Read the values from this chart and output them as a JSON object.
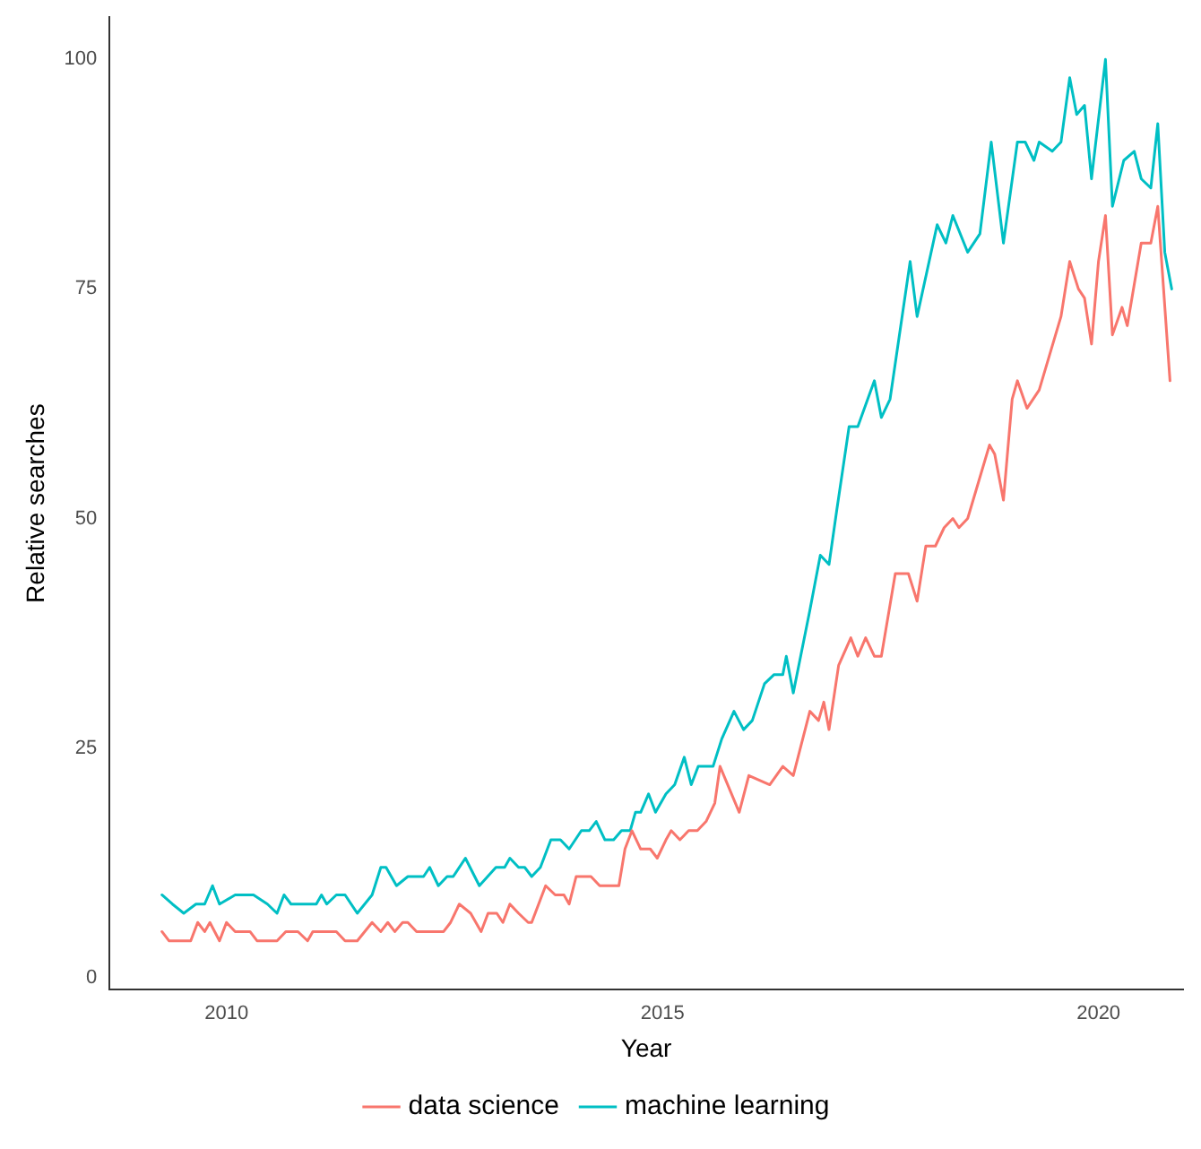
{
  "chart_data": {
    "type": "line",
    "xlabel": "Year",
    "ylabel": "Relative searches",
    "xlim": [
      2008.66,
      2020.97
    ],
    "xticks": [
      2010,
      2015,
      2020
    ],
    "ylim": [
      -1.3,
      104.6
    ],
    "yticks": [
      0,
      25,
      50,
      75,
      100
    ],
    "grid": false,
    "legend": "bottom",
    "marker": "none",
    "line_style": "solid",
    "series": [
      {
        "name": "data science",
        "color": "#f8766d",
        "x": [
          2009.26,
          2009.34,
          2009.59,
          2009.67,
          2009.75,
          2009.81,
          2009.92,
          2010.0,
          2010.1,
          2010.27,
          2010.35,
          2010.58,
          2010.68,
          2010.82,
          2010.93,
          2010.99,
          2011.26,
          2011.36,
          2011.5,
          2011.67,
          2011.77,
          2011.85,
          2011.93,
          2012.02,
          2012.08,
          2012.18,
          2012.49,
          2012.57,
          2012.67,
          2012.8,
          2012.92,
          2013.0,
          2013.1,
          2013.17,
          2013.25,
          2013.35,
          2013.46,
          2013.5,
          2013.66,
          2013.77,
          2013.87,
          2013.93,
          2014.01,
          2014.18,
          2014.28,
          2014.5,
          2014.57,
          2014.65,
          2014.75,
          2014.86,
          2014.94,
          2015.04,
          2015.1,
          2015.2,
          2015.3,
          2015.4,
          2015.5,
          2015.6,
          2015.66,
          2015.88,
          2015.99,
          2016.23,
          2016.38,
          2016.5,
          2016.69,
          2016.79,
          2016.85,
          2016.91,
          2017.02,
          2017.16,
          2017.24,
          2017.33,
          2017.43,
          2017.51,
          2017.67,
          2017.82,
          2017.92,
          2018.02,
          2018.13,
          2018.23,
          2018.33,
          2018.4,
          2018.5,
          2018.75,
          2018.81,
          2018.91,
          2019.01,
          2019.07,
          2019.18,
          2019.32,
          2019.57,
          2019.67,
          2019.77,
          2019.84,
          2019.92,
          2020.0,
          2020.08,
          2020.16,
          2020.27,
          2020.33,
          2020.49,
          2020.6,
          2020.68,
          2020.82
        ],
        "values": [
          5,
          4,
          4,
          6,
          5,
          6,
          4,
          6,
          5,
          5,
          4,
          4,
          5,
          5,
          4,
          5,
          5,
          4,
          4,
          6,
          5,
          6,
          5,
          6,
          6,
          5,
          5,
          6,
          8,
          7,
          5,
          7,
          7,
          6,
          8,
          7,
          6,
          6,
          10,
          9,
          9,
          8,
          11,
          11,
          10,
          10,
          14,
          16,
          14,
          14,
          13,
          15,
          16,
          15,
          16,
          16,
          17,
          19,
          23,
          18,
          22,
          21,
          23,
          22,
          29,
          28,
          30,
          27,
          34,
          37,
          35,
          37,
          35,
          35,
          44,
          44,
          41,
          47,
          47,
          49,
          50,
          49,
          50,
          58,
          57,
          52,
          63,
          65,
          62,
          64,
          72,
          78,
          75,
          74,
          69,
          78,
          83,
          70,
          73,
          71,
          80,
          80,
          84,
          65
        ]
      },
      {
        "name": "machine learning",
        "color": "#00bfc4",
        "x": [
          2009.26,
          2009.38,
          2009.51,
          2009.65,
          2009.75,
          2009.84,
          2009.92,
          2010.1,
          2010.31,
          2010.47,
          2010.58,
          2010.66,
          2010.74,
          2011.03,
          2011.09,
          2011.15,
          2011.26,
          2011.36,
          2011.5,
          2011.67,
          2011.77,
          2011.83,
          2011.95,
          2012.08,
          2012.26,
          2012.33,
          2012.43,
          2012.53,
          2012.6,
          2012.74,
          2012.9,
          2013.09,
          2013.19,
          2013.25,
          2013.35,
          2013.42,
          2013.5,
          2013.6,
          2013.72,
          2013.83,
          2013.93,
          2014.07,
          2014.16,
          2014.24,
          2014.34,
          2014.44,
          2014.53,
          2014.63,
          2014.69,
          2014.75,
          2014.84,
          2014.92,
          2015.04,
          2015.14,
          2015.25,
          2015.33,
          2015.41,
          2015.58,
          2015.68,
          2015.82,
          2015.93,
          2016.03,
          2016.17,
          2016.28,
          2016.38,
          2016.42,
          2016.5,
          2016.69,
          2016.81,
          2016.91,
          2017.0,
          2017.14,
          2017.24,
          2017.43,
          2017.51,
          2017.61,
          2017.84,
          2017.92,
          2018.15,
          2018.25,
          2018.33,
          2018.5,
          2018.64,
          2018.77,
          2018.91,
          2019.07,
          2019.16,
          2019.26,
          2019.32,
          2019.47,
          2019.57,
          2019.67,
          2019.75,
          2019.84,
          2019.92,
          2020.08,
          2020.16,
          2020.29,
          2020.41,
          2020.49,
          2020.6,
          2020.68,
          2020.76,
          2020.84
        ],
        "values": [
          9,
          8,
          7,
          8,
          8,
          10,
          8,
          9,
          9,
          8,
          7,
          9,
          8,
          8,
          9,
          8,
          9,
          9,
          7,
          9,
          12,
          12,
          10,
          11,
          11,
          12,
          10,
          11,
          11,
          13,
          10,
          12,
          12,
          13,
          12,
          12,
          11,
          12,
          15,
          15,
          14,
          16,
          16,
          17,
          15,
          15,
          16,
          16,
          18,
          18,
          20,
          18,
          20,
          21,
          24,
          21,
          23,
          23,
          26,
          29,
          27,
          28,
          32,
          33,
          33,
          35,
          31,
          40,
          46,
          45,
          51,
          60,
          60,
          65,
          61,
          63,
          78,
          72,
          82,
          80,
          83,
          79,
          81,
          91,
          80,
          91,
          91,
          89,
          91,
          90,
          91,
          98,
          94,
          95,
          87,
          100,
          84,
          89,
          90,
          87,
          86,
          93,
          79,
          75
        ]
      }
    ]
  }
}
